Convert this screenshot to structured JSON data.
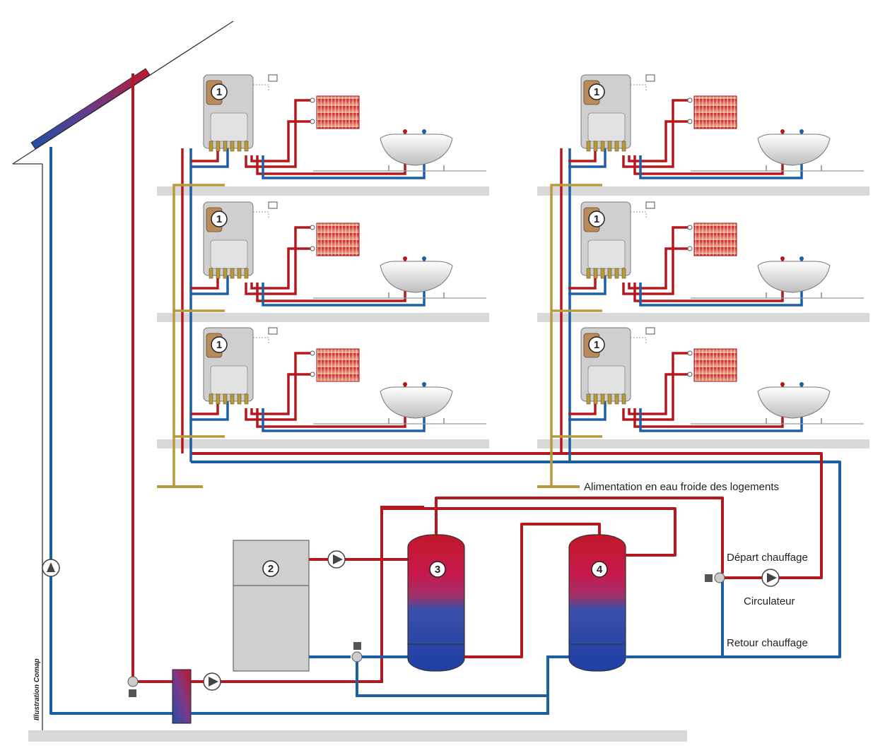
{
  "labels": {
    "cold_water": "Alimentation en eau froide des logements",
    "supply": "Départ chauffage",
    "circulator": "Circulateur",
    "return": "Retour chauffage",
    "credit": "Illustration Comap"
  },
  "markers": {
    "unit": "1",
    "boiler": "2",
    "tank_a": "3",
    "tank_b": "4"
  },
  "colors": {
    "hot": "#b3181f",
    "cold": "#1d5fa6",
    "gold": "#b79a3e",
    "floor": "#d8d8d8",
    "boiler": "#cfcfcf",
    "outline": "#444444",
    "roof": "#333333"
  }
}
